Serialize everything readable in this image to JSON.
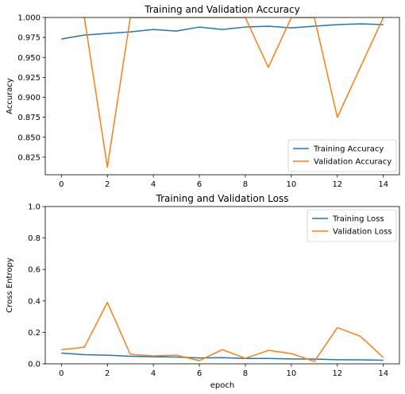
{
  "chart_data": [
    {
      "type": "line",
      "title": "Training and Validation Accuracy",
      "xlabel": "",
      "ylabel": "Accuracy",
      "xlim": [
        -0.7,
        14.7
      ],
      "ylim": [
        0.803,
        1.0
      ],
      "x": [
        0,
        1,
        2,
        3,
        4,
        5,
        6,
        7,
        8,
        9,
        10,
        11,
        12,
        13,
        14
      ],
      "xticks": [
        "0",
        "2",
        "4",
        "6",
        "8",
        "10",
        "12",
        "14"
      ],
      "yticks": [
        "0.825",
        "0.850",
        "0.875",
        "0.900",
        "0.925",
        "0.950",
        "0.975",
        "1.000"
      ],
      "legend": "lower right",
      "grid": false,
      "series": [
        {
          "name": "Training Accuracy",
          "color": "#1f77b4",
          "values": [
            0.973,
            0.978,
            0.98,
            0.982,
            0.985,
            0.983,
            0.988,
            0.985,
            0.988,
            0.989,
            0.987,
            0.989,
            0.991,
            0.992,
            0.991
          ]
        },
        {
          "name": "Validation Accuracy",
          "color": "#ff7f0e",
          "values": [
            1.06,
            1.0,
            0.8125,
            1.0,
            1.0,
            1.0,
            1.0,
            1.0,
            1.0,
            0.9375,
            1.0,
            1.0,
            0.875,
            0.9375,
            1.0
          ]
        }
      ]
    },
    {
      "type": "line",
      "title": "Training and Validation Loss",
      "xlabel": "epoch",
      "ylabel": "Cross Entropy",
      "xlim": [
        -0.7,
        14.7
      ],
      "ylim": [
        0.0,
        1.0
      ],
      "x": [
        0,
        1,
        2,
        3,
        4,
        5,
        6,
        7,
        8,
        9,
        10,
        11,
        12,
        13,
        14
      ],
      "xticks": [
        "0",
        "2",
        "4",
        "6",
        "8",
        "10",
        "12",
        "14"
      ],
      "yticks": [
        "0.0",
        "0.2",
        "0.4",
        "0.6",
        "0.8",
        "1.0"
      ],
      "legend": "upper right",
      "grid": false,
      "series": [
        {
          "name": "Training Loss",
          "color": "#1f77b4",
          "values": [
            0.068,
            0.058,
            0.055,
            0.048,
            0.045,
            0.043,
            0.037,
            0.039,
            0.034,
            0.034,
            0.031,
            0.03,
            0.026,
            0.025,
            0.023
          ]
        },
        {
          "name": "Validation Loss",
          "color": "#ff7f0e",
          "values": [
            0.09,
            0.105,
            0.39,
            0.06,
            0.05,
            0.055,
            0.02,
            0.09,
            0.035,
            0.085,
            0.065,
            0.015,
            0.23,
            0.175,
            0.04
          ]
        }
      ]
    }
  ]
}
